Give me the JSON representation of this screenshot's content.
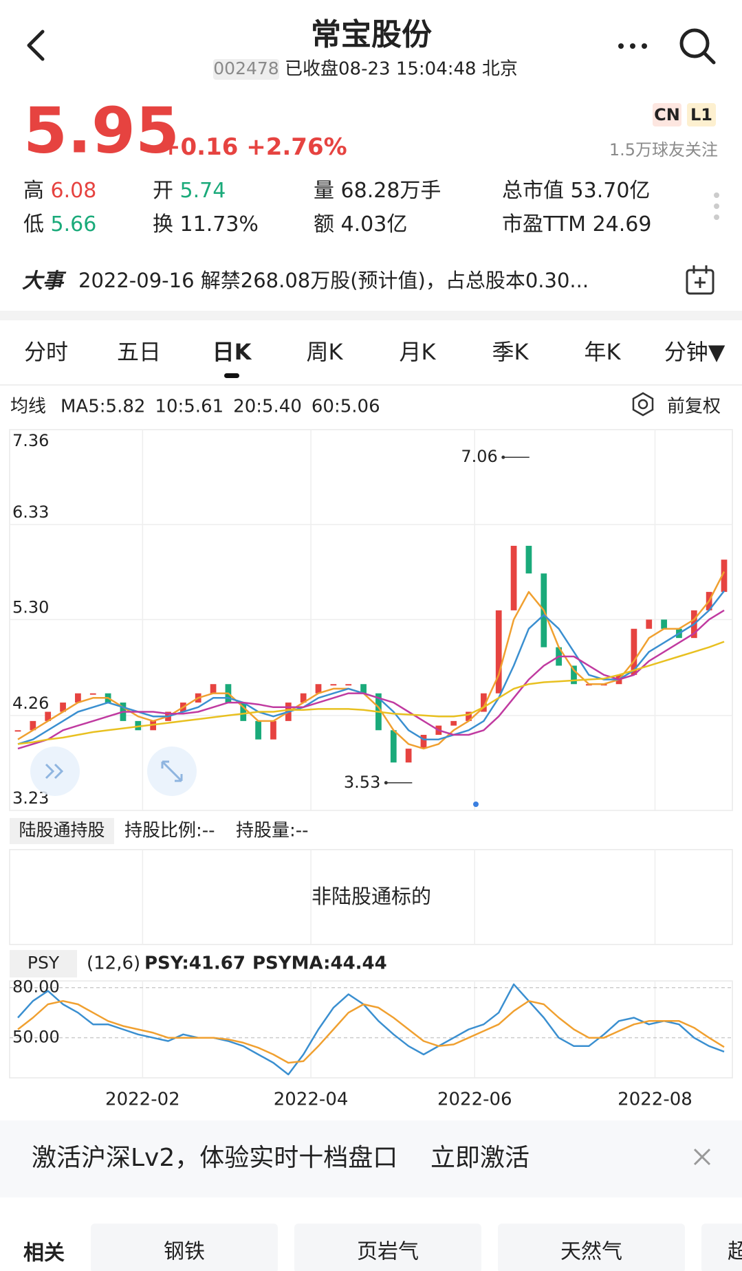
{
  "header": {
    "title": "常宝股份",
    "code": "002478",
    "status": "已收盘08-23 15:04:48 北京"
  },
  "quote": {
    "price": "5.95",
    "change": "+0.16",
    "change_pct": "+2.76%",
    "badges": [
      "CN",
      "L1"
    ],
    "followers": "1.5万球友关注",
    "stats": [
      {
        "label": "高",
        "value": "6.08"
      },
      {
        "label": "开",
        "value": "5.74"
      },
      {
        "label": "量",
        "value": "68.28万手"
      },
      {
        "label": "总市值",
        "value": "53.70亿"
      },
      {
        "label": "低",
        "value": "5.66"
      },
      {
        "label": "换",
        "value": "11.73%"
      },
      {
        "label": "额",
        "value": "4.03亿"
      },
      {
        "label": "市盈TTM",
        "value": "24.69"
      }
    ]
  },
  "event": {
    "label": "大事",
    "text": "2022-09-16 解禁268.08万股(预计值)，占总股本0.30..."
  },
  "tabs": [
    "分时",
    "五日",
    "日K",
    "周K",
    "月K",
    "季K",
    "年K",
    "分钟▼"
  ],
  "chart_data": [
    {
      "type": "candlestick",
      "indicator_label": "均线",
      "adjust": "前复权",
      "xlim": [
        0,
        47
      ],
      "xticks": [
        {
          "value": 8.3,
          "label": "2022-02"
        },
        {
          "value": 19.5,
          "label": "2022-04"
        },
        {
          "value": 30.4,
          "label": "2022-06"
        },
        {
          "value": 42.4,
          "label": "2022-08"
        }
      ],
      "ylim": [
        3.23,
        7.36
      ],
      "yticks": [
        7.36,
        6.33,
        {
          "value": 5.3,
          "label": "5.30"
        },
        4.26,
        3.23
      ],
      "grid": true,
      "up_color": "#e64340",
      "down_color": "#1aaa7a",
      "close": [
        4.1,
        4.2,
        4.3,
        4.4,
        4.5,
        4.5,
        4.4,
        4.2,
        4.1,
        4.2,
        4.3,
        4.4,
        4.5,
        4.6,
        4.4,
        4.2,
        4.0,
        4.2,
        4.4,
        4.5,
        4.6,
        4.6,
        4.6,
        4.5,
        4.1,
        3.75,
        3.9,
        4.05,
        4.15,
        4.2,
        4.3,
        4.5,
        5.4,
        6.1,
        5.8,
        5.0,
        4.8,
        4.6,
        4.6,
        4.6,
        4.7,
        5.2,
        5.3,
        5.2,
        5.1,
        5.4,
        5.6,
        5.95
      ],
      "series": [
        {
          "name": "MA5:5.82",
          "color": "#f0a030",
          "values": [
            4.0,
            4.1,
            4.2,
            4.3,
            4.4,
            4.45,
            4.45,
            4.35,
            4.25,
            4.2,
            4.25,
            4.35,
            4.45,
            4.5,
            4.5,
            4.35,
            4.2,
            4.2,
            4.3,
            4.4,
            4.5,
            4.55,
            4.55,
            4.5,
            4.35,
            4.1,
            3.95,
            3.9,
            3.95,
            4.1,
            4.2,
            4.35,
            4.7,
            5.3,
            5.6,
            5.4,
            5.0,
            4.75,
            4.6,
            4.6,
            4.65,
            4.85,
            5.1,
            5.2,
            5.2,
            5.3,
            5.5,
            5.82
          ]
        },
        {
          "name": "10:5.61",
          "color": "#3a8fd0",
          "values": [
            3.95,
            4.0,
            4.1,
            4.2,
            4.3,
            4.35,
            4.4,
            4.35,
            4.3,
            4.25,
            4.25,
            4.3,
            4.35,
            4.45,
            4.45,
            4.4,
            4.3,
            4.25,
            4.3,
            4.35,
            4.45,
            4.5,
            4.55,
            4.5,
            4.45,
            4.3,
            4.1,
            4.0,
            4.0,
            4.05,
            4.1,
            4.2,
            4.45,
            4.8,
            5.2,
            5.35,
            5.2,
            4.95,
            4.7,
            4.65,
            4.65,
            4.75,
            4.95,
            5.05,
            5.15,
            5.25,
            5.4,
            5.61
          ]
        },
        {
          "name": "20:5.40",
          "color": "#c03aa0",
          "values": [
            3.9,
            3.95,
            4.0,
            4.1,
            4.15,
            4.2,
            4.25,
            4.3,
            4.3,
            4.3,
            4.28,
            4.28,
            4.3,
            4.35,
            4.4,
            4.4,
            4.38,
            4.35,
            4.35,
            4.35,
            4.4,
            4.45,
            4.5,
            4.5,
            4.45,
            4.4,
            4.3,
            4.2,
            4.1,
            4.05,
            4.05,
            4.1,
            4.25,
            4.45,
            4.65,
            4.8,
            4.9,
            4.9,
            4.8,
            4.7,
            4.65,
            4.7,
            4.85,
            4.95,
            5.05,
            5.15,
            5.3,
            5.4
          ]
        },
        {
          "name": "60:5.06",
          "color": "#e8c020",
          "values": [
            3.95,
            3.97,
            4.0,
            4.02,
            4.05,
            4.08,
            4.1,
            4.12,
            4.14,
            4.16,
            4.18,
            4.2,
            4.22,
            4.24,
            4.26,
            4.28,
            4.3,
            4.3,
            4.32,
            4.32,
            4.33,
            4.33,
            4.33,
            4.32,
            4.3,
            4.28,
            4.27,
            4.26,
            4.25,
            4.25,
            4.27,
            4.35,
            4.45,
            4.55,
            4.6,
            4.62,
            4.63,
            4.64,
            4.65,
            4.66,
            4.7,
            4.75,
            4.8,
            4.85,
            4.9,
            4.95,
            5.0,
            5.06
          ]
        }
      ],
      "annotations": [
        {
          "x": 32.3,
          "value": 7.06
        },
        {
          "x": 24.5,
          "value": 3.53
        }
      ]
    },
    {
      "type": "line",
      "title": "PSY",
      "params": "(12,6)",
      "xlim": [
        0,
        47
      ],
      "ylim": [
        26,
        84
      ],
      "yticks": [
        {
          "value": 80,
          "label": "80.00"
        },
        {
          "value": 50,
          "label": "50.00"
        }
      ],
      "series": [
        {
          "name": "PSY:41.67",
          "color": "#3a8fd0",
          "values": [
            62,
            72,
            78,
            70,
            65,
            58,
            58,
            55,
            52,
            50,
            48,
            52,
            50,
            50,
            48,
            45,
            40,
            35,
            28,
            40,
            55,
            68,
            76,
            70,
            60,
            52,
            45,
            40,
            45,
            50,
            55,
            58,
            65,
            82,
            72,
            62,
            50,
            45,
            45,
            52,
            60,
            62,
            58,
            60,
            58,
            50,
            45,
            41.67
          ]
        },
        {
          "name": "PSYMA:44.44",
          "color": "#f0a030",
          "values": [
            55,
            62,
            70,
            72,
            70,
            65,
            60,
            57,
            55,
            53,
            50,
            50,
            50,
            50,
            49,
            47,
            44,
            40,
            35,
            36,
            45,
            55,
            65,
            70,
            68,
            62,
            55,
            48,
            45,
            46,
            50,
            54,
            58,
            66,
            72,
            70,
            62,
            55,
            50,
            50,
            54,
            58,
            60,
            60,
            60,
            56,
            50,
            44.44
          ]
        }
      ]
    }
  ],
  "hk_connect": {
    "label": "陆股通持股",
    "ratio": "持股比例:--",
    "amount": "持股量:--",
    "note": "非陆股通标的"
  },
  "banner": {
    "text": "激活沪深Lv2，体验实时十档盘口",
    "action": "立即激活"
  },
  "related": {
    "label": "相关",
    "tags": [
      "钢铁",
      "页岩气",
      "天然气",
      "超"
    ]
  }
}
